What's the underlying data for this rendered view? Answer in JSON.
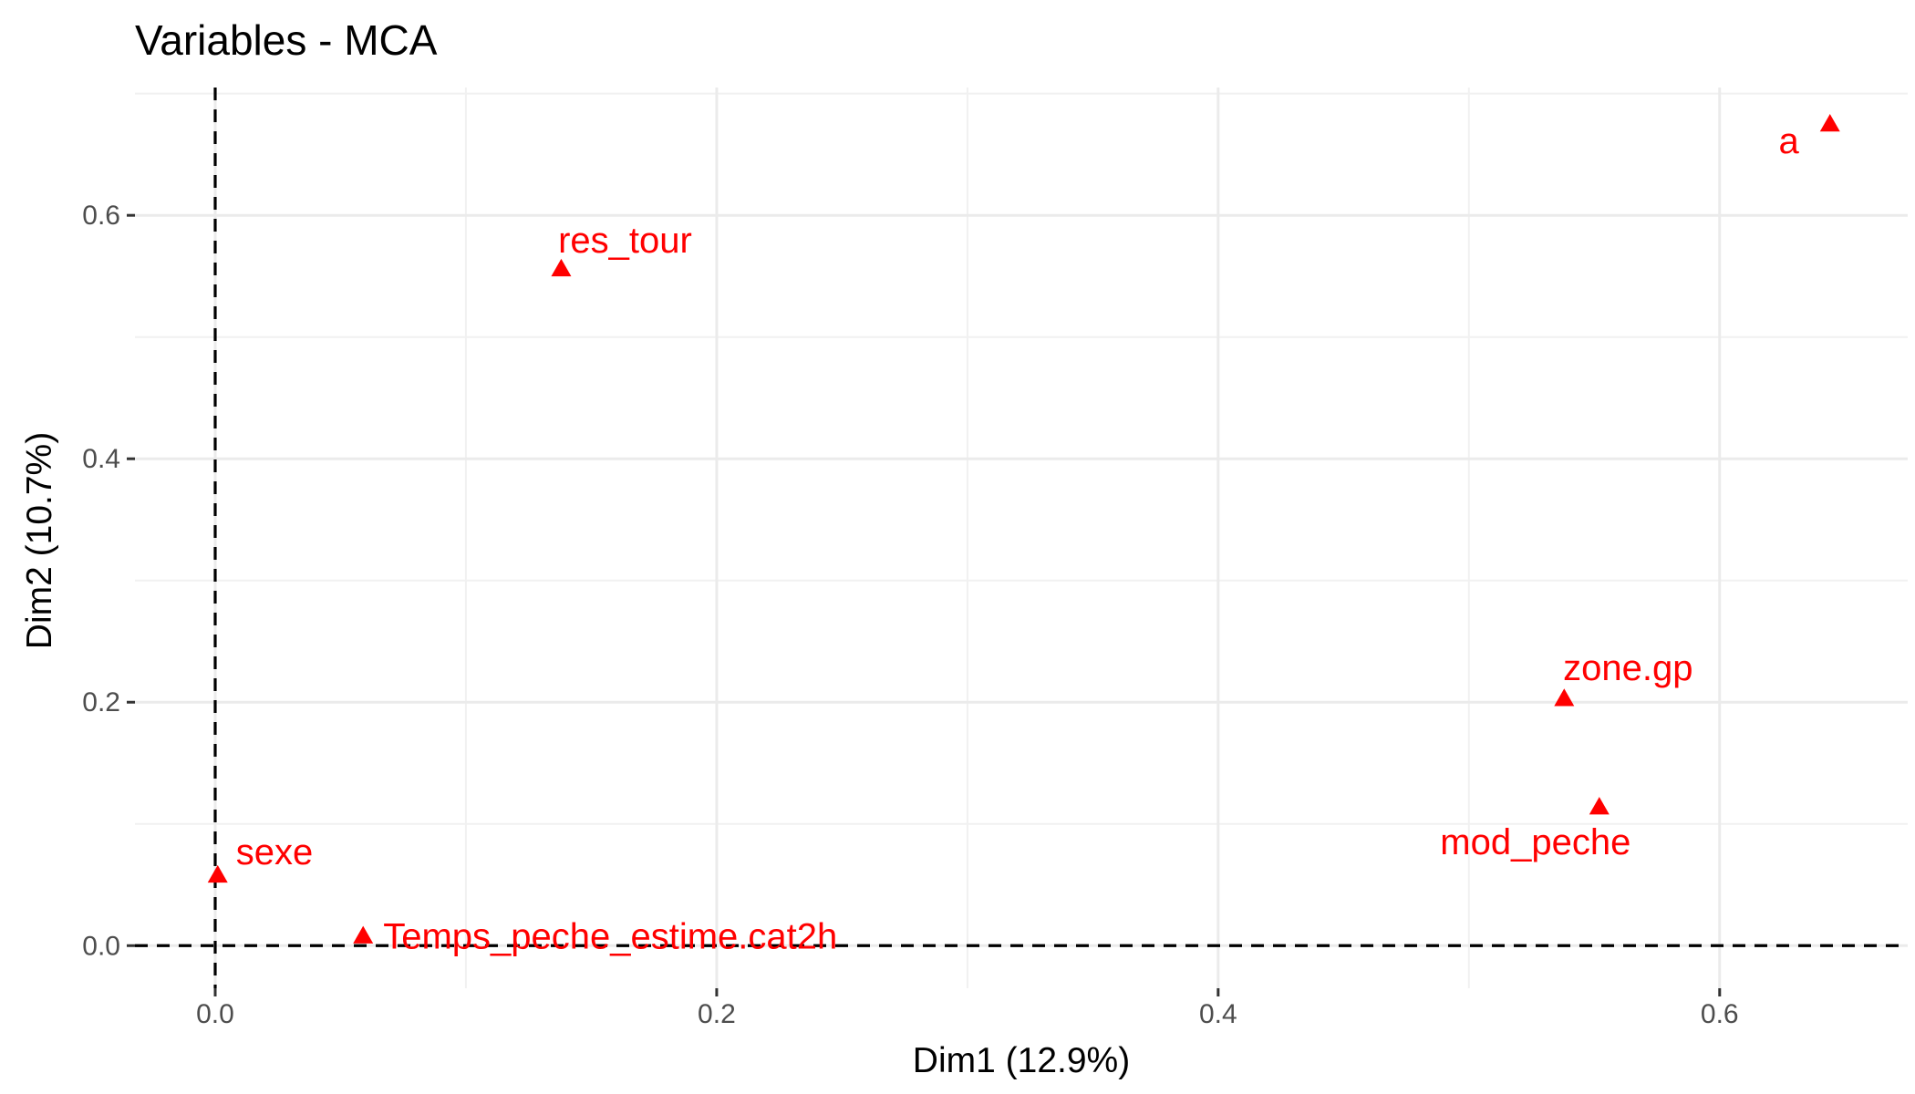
{
  "chart_data": {
    "type": "scatter",
    "title": "Variables - MCA",
    "xlabel": "Dim1 (12.9%)",
    "ylabel": "Dim2 (10.7%)",
    "xlim": [
      -0.032,
      0.675
    ],
    "ylim": [
      -0.035,
      0.705
    ],
    "x_ticks": [
      0.0,
      0.2,
      0.4,
      0.6
    ],
    "x_tick_labels": [
      "0.0",
      "0.2",
      "0.4",
      "0.6"
    ],
    "y_ticks": [
      0.0,
      0.2,
      0.4,
      0.6
    ],
    "y_tick_labels": [
      "0.0",
      "0.2",
      "0.4",
      "0.6"
    ],
    "grid": true,
    "reference_lines": {
      "x": 0,
      "y": 0,
      "style": "dashed"
    },
    "marker": "triangle",
    "color": "#ff0000",
    "points": [
      {
        "label": "a",
        "x": 0.644,
        "y": 0.675
      },
      {
        "label": "res_tour",
        "x": 0.138,
        "y": 0.556
      },
      {
        "label": "zone.gp",
        "x": 0.538,
        "y": 0.203
      },
      {
        "label": "mod_peche",
        "x": 0.552,
        "y": 0.114
      },
      {
        "label": "sexe",
        "x": 0.001,
        "y": 0.058
      },
      {
        "label": "Temps_peche_estime.cat2h",
        "x": 0.059,
        "y": 0.008
      }
    ]
  }
}
